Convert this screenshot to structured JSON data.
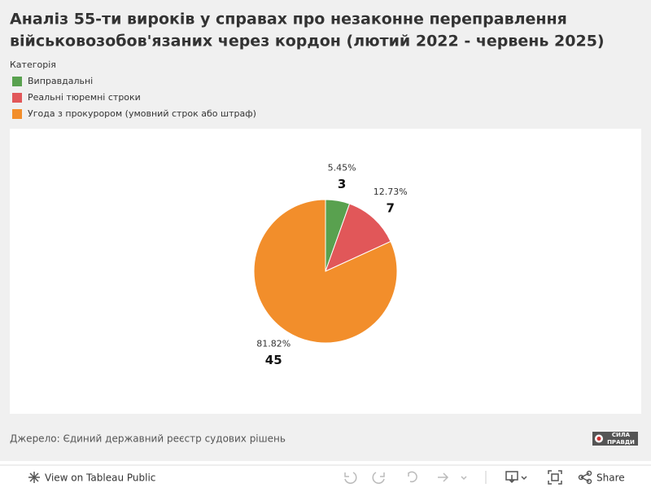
{
  "chart_data": {
    "type": "pie",
    "title": [
      "Аналіз 55-ти вироків у справах про незаконне переправлення",
      "військовозобов'язаних через кордон (лютий 2022 - червень 2025)"
    ],
    "legend_title": "Категорія",
    "categories": [
      "Виправдальні",
      "Реальні тюремні строки",
      "Угода з прокурором (умовний строк або штраф)"
    ],
    "colors": [
      "#59a14f",
      "#e15759",
      "#f28e2b"
    ],
    "values": [
      3,
      7,
      45
    ],
    "shares": {
      "values": [
        5.45,
        12.73,
        81.82
      ],
      "value_labels": [
        "5.45%",
        "12.73%",
        "81.82%"
      ]
    }
  },
  "source": "Джерело: Єдиний державний реєстр судових рішень",
  "logo": [
    "СИЛА",
    "ПРАВДИ"
  ],
  "toolbar": {
    "view": "View on Tableau Public",
    "share": "Share"
  }
}
